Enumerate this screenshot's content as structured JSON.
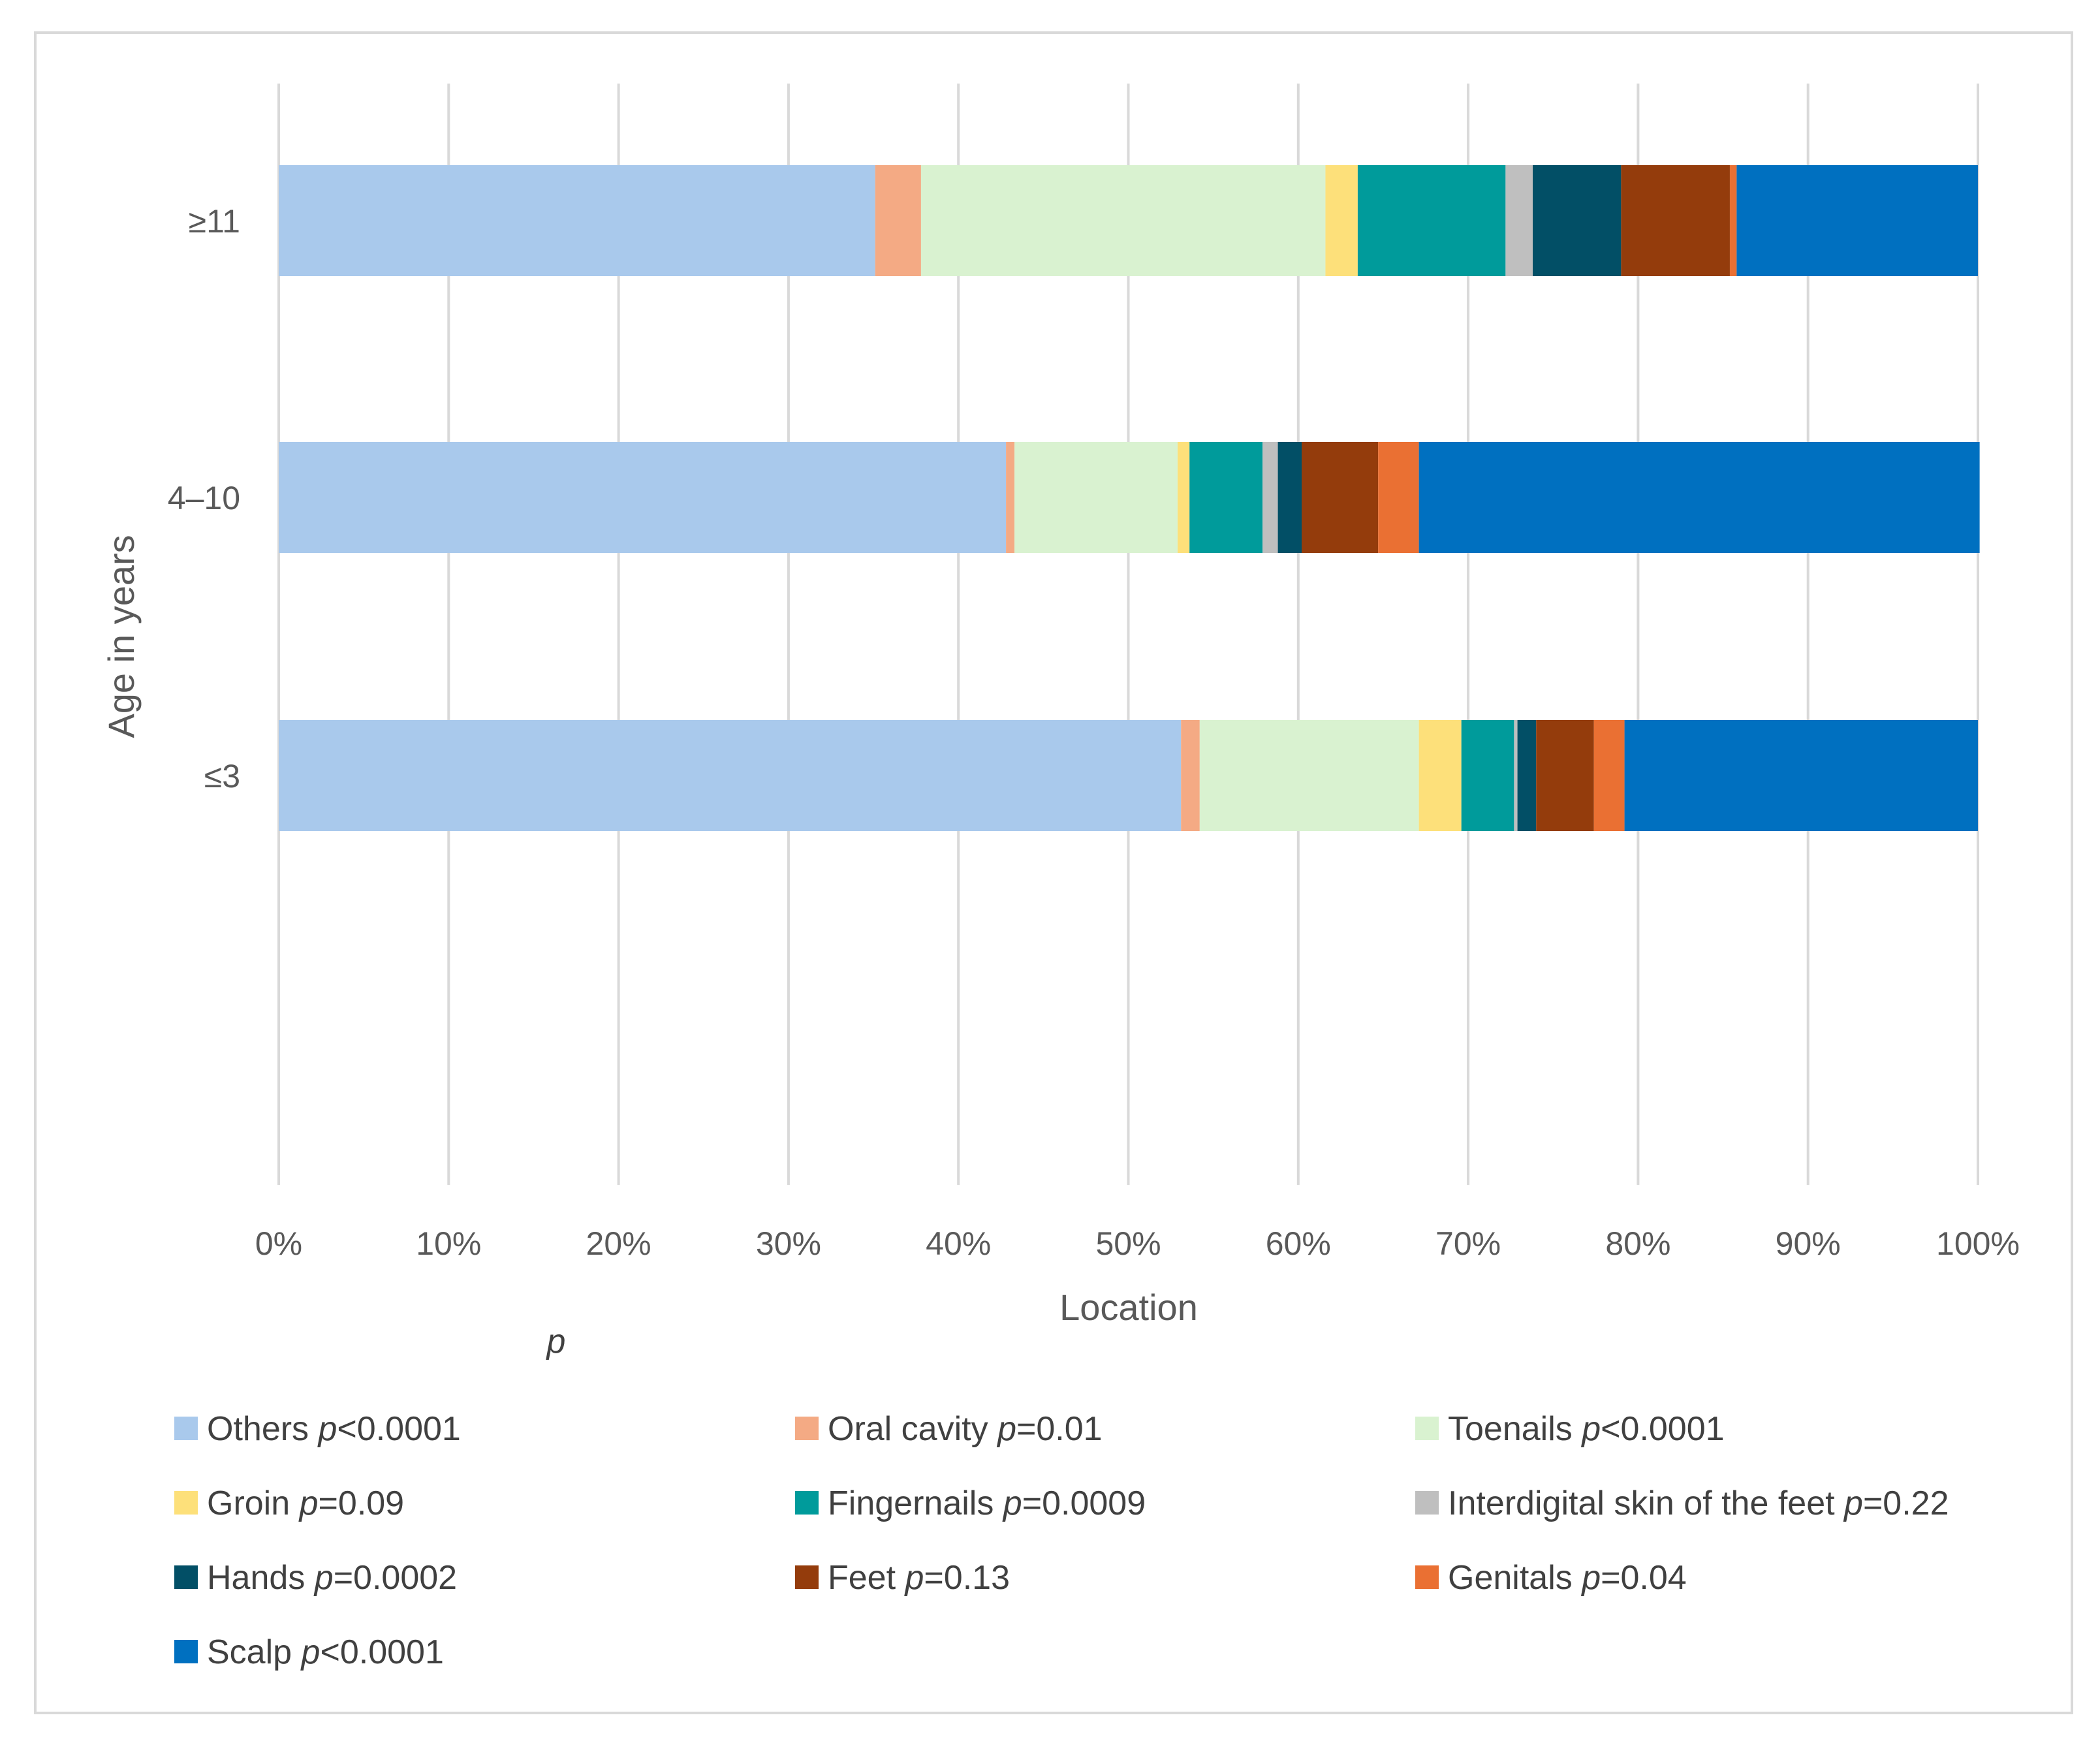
{
  "chart_data": {
    "type": "bar",
    "orientation": "horizontal",
    "stacked": "percent",
    "title": "",
    "xlabel": "Location",
    "ylabel": "Age in years",
    "stray_label": "p",
    "xlim": [
      0,
      100
    ],
    "xticks": [
      "0%",
      "10%",
      "20%",
      "30%",
      "40%",
      "50%",
      "60%",
      "70%",
      "80%",
      "90%",
      "100%"
    ],
    "grid": true,
    "legend_position": "bottom",
    "categories": [
      "≥11",
      "4–10",
      "≤3"
    ],
    "series": [
      {
        "name": "Others",
        "p_sep": "<",
        "p_val": "0.0001",
        "color": "#a9c9ec",
        "values": [
          35.1,
          42.8,
          53.1
        ]
      },
      {
        "name": "Oral cavity",
        "p_sep": "=",
        "p_val": "0.01",
        "color": "#f4aa84",
        "values": [
          2.7,
          0.5,
          1.1
        ]
      },
      {
        "name": "Toenails",
        "p_sep": "<",
        "p_val": "0.0001",
        "color": "#d9f2d0",
        "values": [
          23.8,
          9.6,
          12.9
        ]
      },
      {
        "name": "Groin",
        "p_sep": "=",
        "p_val": "0.09",
        "color": "#fde07a",
        "values": [
          1.9,
          0.7,
          2.5
        ]
      },
      {
        "name": "Fingernails",
        "p_sep": "=",
        "p_val": "0.0009",
        "color": "#009b9b",
        "values": [
          8.7,
          4.3,
          3.1
        ]
      },
      {
        "name": "Interdigital skin of the feet",
        "p_sep": "=",
        "p_val": "0.22",
        "color": "#bfbfbf",
        "values": [
          1.6,
          0.9,
          0.2
        ]
      },
      {
        "name": "Hands",
        "p_sep": "=",
        "p_val": "0.0002",
        "color": "#024f66",
        "values": [
          5.2,
          1.4,
          1.1
        ]
      },
      {
        "name": "Feet",
        "p_sep": "=",
        "p_val": "0.13",
        "color": "#943c0c",
        "values": [
          6.4,
          4.5,
          3.4
        ]
      },
      {
        "name": "Genitals",
        "p_sep": "=",
        "p_val": "0.04",
        "color": "#ea7033",
        "values": [
          0.4,
          2.4,
          1.8
        ]
      },
      {
        "name": "Scalp",
        "p_sep": "<",
        "p_val": "0.0001",
        "color": "#0070c0",
        "values": [
          14.2,
          33.0,
          20.8
        ]
      }
    ]
  }
}
